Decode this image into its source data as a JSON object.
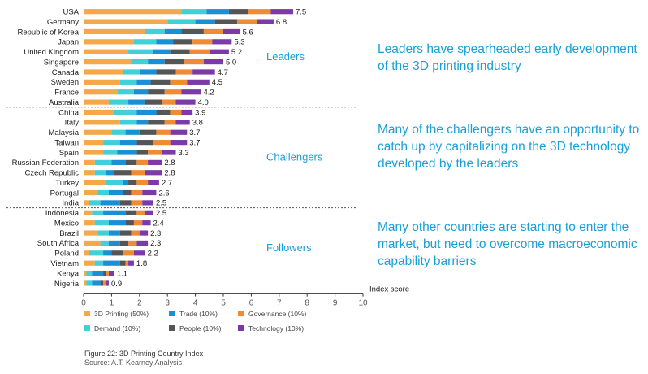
{
  "chart_data": {
    "type": "bar",
    "stacked": true,
    "orientation": "horizontal",
    "xlabel": "Index score",
    "xlim": [
      0,
      10
    ],
    "x_ticks": [
      0,
      1,
      2,
      3,
      4,
      5,
      6,
      7,
      8,
      9,
      10
    ],
    "grid": false,
    "legend_position": "bottom",
    "categories": [
      "USA",
      "Germany",
      "Republic of Korea",
      "Japan",
      "United Kingdom",
      "Singapore",
      "Canada",
      "Sweden",
      "France",
      "Australia",
      "China",
      "Italy",
      "Malaysia",
      "Taiwan",
      "Spain",
      "Russian Federation",
      "Czech Republic",
      "Turkey",
      "Portugal",
      "India",
      "Indonesia",
      "Mexico",
      "Brazil",
      "South Africa",
      "Poland",
      "Vietnam",
      "Kenya",
      "Nigeria"
    ],
    "totals": [
      "7.5",
      "6.8",
      "5.6",
      "5.3",
      "5.2",
      "5.0",
      "4.7",
      "4.5",
      "4.2",
      "4.0",
      "3.9",
      "3.8",
      "3.7",
      "3.7",
      "3.3",
      "2.8",
      "2.8",
      "2.7",
      "2.6",
      "2.5",
      "2.5",
      "2.4",
      "2.3",
      "2.3",
      "2.2",
      "1.8",
      "1.1",
      "0.9"
    ],
    "series": [
      {
        "name": "3D Printing (50%)",
        "color": "#f5a84a",
        "values": [
          3.5,
          3.0,
          2.2,
          1.8,
          1.6,
          1.7,
          1.4,
          1.3,
          1.2,
          0.9,
          1.1,
          1.3,
          1.0,
          0.7,
          0.7,
          0.4,
          0.4,
          0.8,
          0.5,
          0.2,
          0.3,
          0.4,
          0.5,
          0.6,
          0.2,
          0.4,
          0.1,
          0.1
        ]
      },
      {
        "name": "Demand (10%)",
        "color": "#3fd0d8",
        "values": [
          0.9,
          1.0,
          0.7,
          0.8,
          0.9,
          0.6,
          0.6,
          0.6,
          0.6,
          0.7,
          0.8,
          0.6,
          0.5,
          0.6,
          0.5,
          0.6,
          0.4,
          0.6,
          0.4,
          0.4,
          0.4,
          0.5,
          0.4,
          0.3,
          0.5,
          0.3,
          0.2,
          0.2
        ]
      },
      {
        "name": "Trade (10%)",
        "color": "#1a8fd6",
        "values": [
          0.8,
          0.7,
          0.6,
          0.6,
          0.6,
          0.6,
          0.6,
          0.5,
          0.5,
          0.6,
          0.7,
          0.4,
          0.5,
          0.6,
          0.7,
          0.5,
          0.3,
          0.2,
          0.5,
          0.7,
          0.8,
          0.6,
          0.4,
          0.4,
          0.3,
          0.6,
          0.4,
          0.3
        ]
      },
      {
        "name": "People (10%)",
        "color": "#555555",
        "values": [
          0.7,
          0.8,
          0.8,
          0.7,
          0.7,
          0.7,
          0.7,
          0.7,
          0.6,
          0.6,
          0.5,
          0.6,
          0.6,
          0.6,
          0.4,
          0.4,
          0.6,
          0.3,
          0.3,
          0.4,
          0.4,
          0.3,
          0.4,
          0.3,
          0.4,
          0.2,
          0.1,
          0.1
        ]
      },
      {
        "name": "Governance (10%)",
        "color": "#ef8a35",
        "values": [
          0.8,
          0.7,
          0.7,
          0.7,
          0.7,
          0.7,
          0.6,
          0.6,
          0.6,
          0.5,
          0.4,
          0.4,
          0.5,
          0.6,
          0.5,
          0.4,
          0.5,
          0.4,
          0.4,
          0.4,
          0.3,
          0.3,
          0.3,
          0.3,
          0.4,
          0.1,
          0.1,
          0.1
        ]
      },
      {
        "name": "Technology (10%)",
        "color": "#7a3aa8",
        "values": [
          0.8,
          0.6,
          0.6,
          0.7,
          0.7,
          0.7,
          0.8,
          0.8,
          0.7,
          0.7,
          0.4,
          0.5,
          0.6,
          0.6,
          0.5,
          0.5,
          0.6,
          0.4,
          0.5,
          0.4,
          0.3,
          0.3,
          0.3,
          0.4,
          0.4,
          0.2,
          0.2,
          0.1
        ]
      }
    ],
    "groups": [
      {
        "name": "Leaders",
        "count": 10
      },
      {
        "name": "Challengers",
        "count": 10
      },
      {
        "name": "Followers",
        "count": 8
      }
    ]
  },
  "callouts": [
    "Leaders have spearheaded early development of the 3D printing industry",
    "Many of the challengers have an opportunity to catch up by capitalizing on the 3D technology developed by the leaders",
    "Many other countries are starting to enter the market, but need to overcome macroeconomic capability barriers"
  ],
  "caption": {
    "figure": "Figure 22: 3D Printing Country Index",
    "source": "Source: A.T. Kearney Analysis"
  }
}
